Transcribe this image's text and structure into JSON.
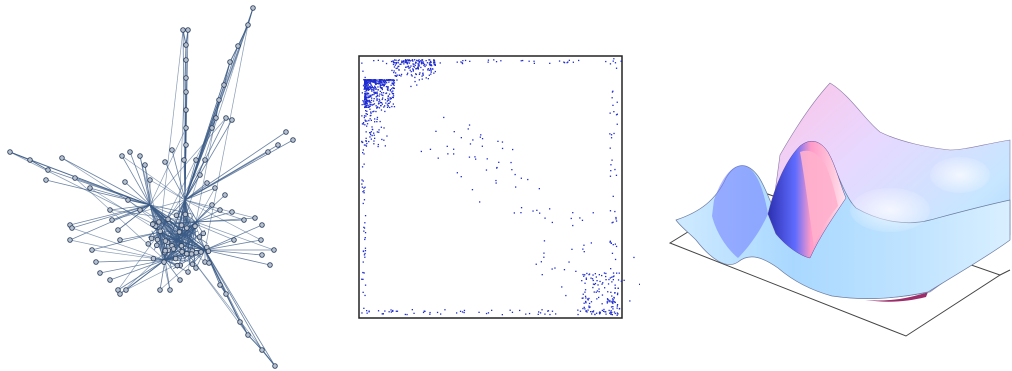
{
  "figure": {
    "panels": [
      {
        "id": "network-graph",
        "kind": "node-link graph"
      },
      {
        "id": "sparse-matrix-plot",
        "kind": "sparsity pattern"
      },
      {
        "id": "surface-plot",
        "kind": "3D surface"
      }
    ]
  },
  "colors": {
    "background": "#ffffff",
    "graph_edge": "#3b5b86",
    "graph_node_fill": "#b9c2cc",
    "graph_node_stroke": "#2f4467",
    "matrix_dot": "#1f2ccf",
    "matrix_frame": "#222222",
    "surface_light": "#bfe3ff",
    "surface_pink": "#ff9fc4",
    "surface_deep": "#3a2fbf",
    "surface_base": "#9b2e6a"
  }
}
